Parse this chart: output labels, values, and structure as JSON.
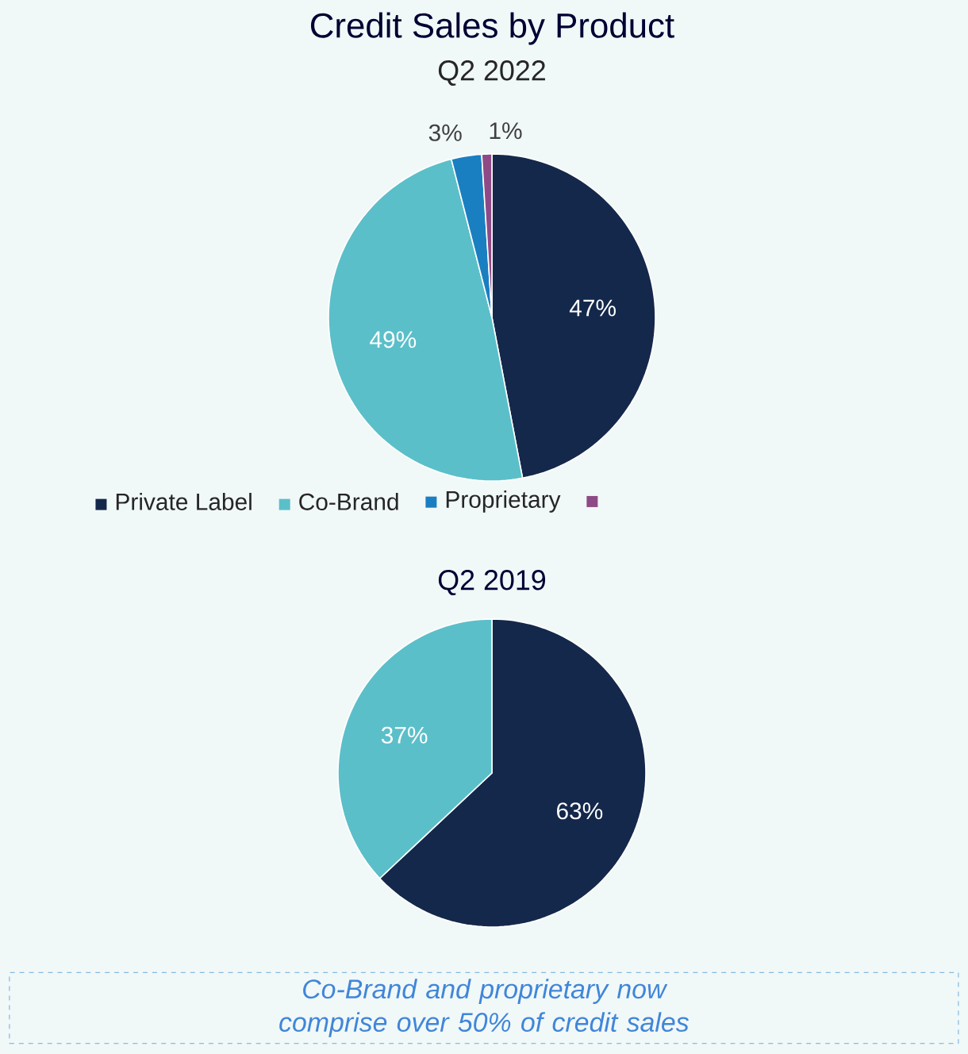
{
  "chart_data": [
    {
      "type": "pie",
      "title": "Credit Sales by Product",
      "subtitle": "Q2 2022",
      "categories": [
        "Private Label",
        "Co-Brand",
        "Proprietary",
        null
      ],
      "values": [
        47,
        49,
        3,
        1
      ],
      "value_labels": [
        "47%",
        "49%",
        "3%",
        "1%"
      ],
      "colors": [
        "#14284b",
        "#5bbfc9",
        "#1a7fc1",
        "#8e4a86"
      ],
      "legend": "bottom"
    },
    {
      "type": "pie",
      "title": "Q2 2019",
      "categories": [
        null,
        null
      ],
      "values": [
        63,
        37
      ],
      "value_labels": [
        "63%",
        "37%"
      ],
      "colors": [
        "#14284b",
        "#5bbfc9"
      ],
      "annotations": [
        "Co-Brand and proprietary now comprise over 50% of credit sales"
      ]
    }
  ]
}
